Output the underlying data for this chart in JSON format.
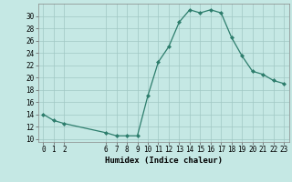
{
  "x": [
    0,
    1,
    2,
    6,
    7,
    8,
    9,
    10,
    11,
    12,
    13,
    14,
    15,
    16,
    17,
    18,
    19,
    20,
    21,
    22,
    23
  ],
  "y": [
    14,
    13,
    12.5,
    11,
    10.5,
    10.5,
    10.5,
    17,
    22.5,
    25,
    29,
    31,
    30.5,
    31,
    30.5,
    26.5,
    23.5,
    21,
    20.5,
    19.5,
    19
  ],
  "line_color": "#2d7d6c",
  "marker": "D",
  "marker_size": 2.0,
  "bg_color": "#c5e8e4",
  "grid_color": "#a0c8c4",
  "xlabel": "Humidex (Indice chaleur)",
  "xlim": [
    -0.5,
    23.5
  ],
  "ylim": [
    9.5,
    32
  ],
  "yticks": [
    10,
    12,
    14,
    16,
    18,
    20,
    22,
    24,
    26,
    28,
    30
  ],
  "xticks": [
    0,
    1,
    2,
    6,
    7,
    8,
    9,
    10,
    11,
    12,
    13,
    14,
    15,
    16,
    17,
    18,
    19,
    20,
    21,
    22,
    23
  ],
  "tick_label_fontsize": 5.5,
  "xlabel_fontsize": 6.5,
  "linewidth": 0.9
}
